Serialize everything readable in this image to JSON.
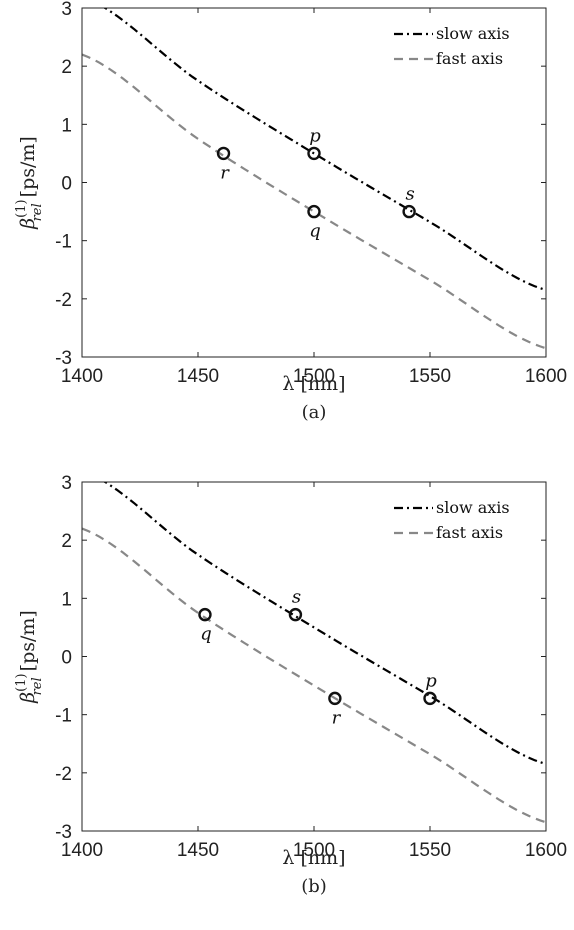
{
  "chart_data": [
    {
      "type": "line",
      "caption": "(a)",
      "xlabel": "λ [nm]",
      "ylabel": "β(1)rel [ps/m]",
      "ylabel_parts": {
        "base": "β",
        "sup": "(1)",
        "sub": "rel",
        "unit": "[ps/m]"
      },
      "xlim": [
        1400,
        1600
      ],
      "ylim": [
        -3,
        3
      ],
      "xticks": [
        1400,
        1450,
        1500,
        1550,
        1600
      ],
      "yticks": [
        -3,
        -2,
        -1,
        0,
        1,
        2,
        3
      ],
      "legend_position": "top-right",
      "series": [
        {
          "name": "slow axis",
          "style": "dashdot",
          "color": "#000000",
          "x": [
            1400,
            1450,
            1500,
            1550,
            1600
          ],
          "y": [
            3.2,
            1.75,
            0.5,
            -0.68,
            -1.85
          ]
        },
        {
          "name": "fast axis",
          "style": "dashed",
          "color": "#888888",
          "x": [
            1400,
            1450,
            1500,
            1550,
            1600
          ],
          "y": [
            2.2,
            0.75,
            -0.5,
            -1.68,
            -2.85
          ]
        }
      ],
      "points": [
        {
          "label": "p",
          "x": 1500,
          "y": 0.5,
          "label_pos": "above"
        },
        {
          "label": "q",
          "x": 1500,
          "y": -0.5,
          "label_pos": "below"
        },
        {
          "label": "r",
          "x": 1461,
          "y": 0.5,
          "label_pos": "below"
        },
        {
          "label": "s",
          "x": 1541,
          "y": -0.5,
          "label_pos": "above"
        }
      ]
    },
    {
      "type": "line",
      "caption": "(b)",
      "xlabel": "λ [nm]",
      "ylabel": "β(1)rel [ps/m]",
      "ylabel_parts": {
        "base": "β",
        "sup": "(1)",
        "sub": "rel",
        "unit": "[ps/m]"
      },
      "xlim": [
        1400,
        1600
      ],
      "ylim": [
        -3,
        3
      ],
      "xticks": [
        1400,
        1450,
        1500,
        1550,
        1600
      ],
      "yticks": [
        -3,
        -2,
        -1,
        0,
        1,
        2,
        3
      ],
      "legend_position": "top-right",
      "series": [
        {
          "name": "slow axis",
          "style": "dashdot",
          "color": "#000000",
          "x": [
            1400,
            1450,
            1500,
            1550,
            1600
          ],
          "y": [
            3.2,
            1.75,
            0.5,
            -0.68,
            -1.85
          ]
        },
        {
          "name": "fast axis",
          "style": "dashed",
          "color": "#888888",
          "x": [
            1400,
            1450,
            1500,
            1550,
            1600
          ],
          "y": [
            2.2,
            0.75,
            -0.5,
            -1.68,
            -2.85
          ]
        }
      ],
      "points": [
        {
          "label": "s",
          "x": 1492,
          "y": 0.72,
          "label_pos": "above"
        },
        {
          "label": "q",
          "x": 1453,
          "y": 0.72,
          "label_pos": "below"
        },
        {
          "label": "r",
          "x": 1509,
          "y": -0.72,
          "label_pos": "below"
        },
        {
          "label": "p",
          "x": 1550,
          "y": -0.72,
          "label_pos": "above"
        }
      ]
    }
  ]
}
